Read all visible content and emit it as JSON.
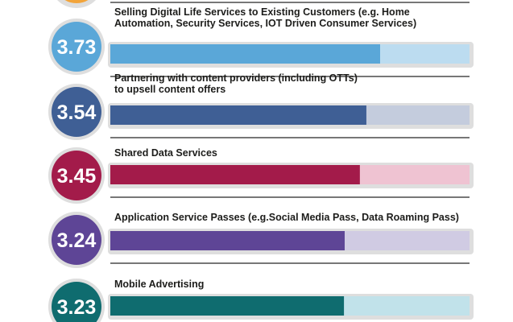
{
  "chart_data": {
    "type": "bar",
    "orientation": "horizontal",
    "items": [
      {
        "label_lines": [
          "Selling Digital Life Services to Existing Customers (e.g. Home",
          "Automation, Security Services, IOT Driven Consumer Services)"
        ],
        "value": 3.73,
        "value_label": "3.73",
        "bar_color": "#5aa7d8",
        "track_color": "#bcdcf0",
        "circle_color": "#5aa7d8"
      },
      {
        "label_lines": [
          "Partnering with content providers (including OTTs)",
          "to upsell content offers"
        ],
        "value": 3.54,
        "value_label": "3.54",
        "bar_color": "#3f5f95",
        "track_color": "#c4ccdd",
        "circle_color": "#3f5f95"
      },
      {
        "label_lines": [
          "Shared Data Services"
        ],
        "value": 3.45,
        "value_label": "3.45",
        "bar_color": "#a31b4a",
        "track_color": "#efc3d2",
        "circle_color": "#a31b4a"
      },
      {
        "label_lines": [
          "Application Service Passes (e.g.Social Media Pass, Data Roaming Pass)"
        ],
        "value": 3.24,
        "value_label": "3.24",
        "bar_color": "#5e4596",
        "track_color": "#d0cbe3",
        "circle_color": "#5e4596"
      },
      {
        "label_lines": [
          "Mobile Advertising"
        ],
        "value": 3.23,
        "value_label": "3.23",
        "bar_color": "#0f6c6f",
        "track_color": "#c1e2ea",
        "circle_color": "#0f6c6f"
      }
    ],
    "xlim": [
      0,
      5
    ],
    "grid": false,
    "legend": "none",
    "partial_top_item_color": "#f2a43a"
  }
}
